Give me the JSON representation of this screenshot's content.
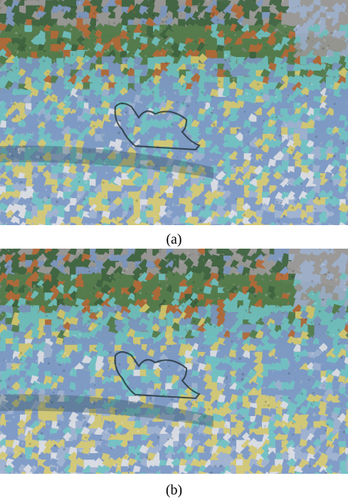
{
  "figure": {
    "panels": [
      {
        "caption": "(a)"
      },
      {
        "caption": "(b)"
      }
    ],
    "palette": {
      "gray": "#9b9a98",
      "dark_gray": "#6f6d6b",
      "green": "#4e7a45",
      "dark_green": "#355f37",
      "orange": "#b8652e",
      "cyan": "#6cc5c4",
      "blue": "#7a98c6",
      "light_blue": "#9fb3d2",
      "yellow": "#dccd68",
      "white": "#e4e4e8"
    }
  }
}
